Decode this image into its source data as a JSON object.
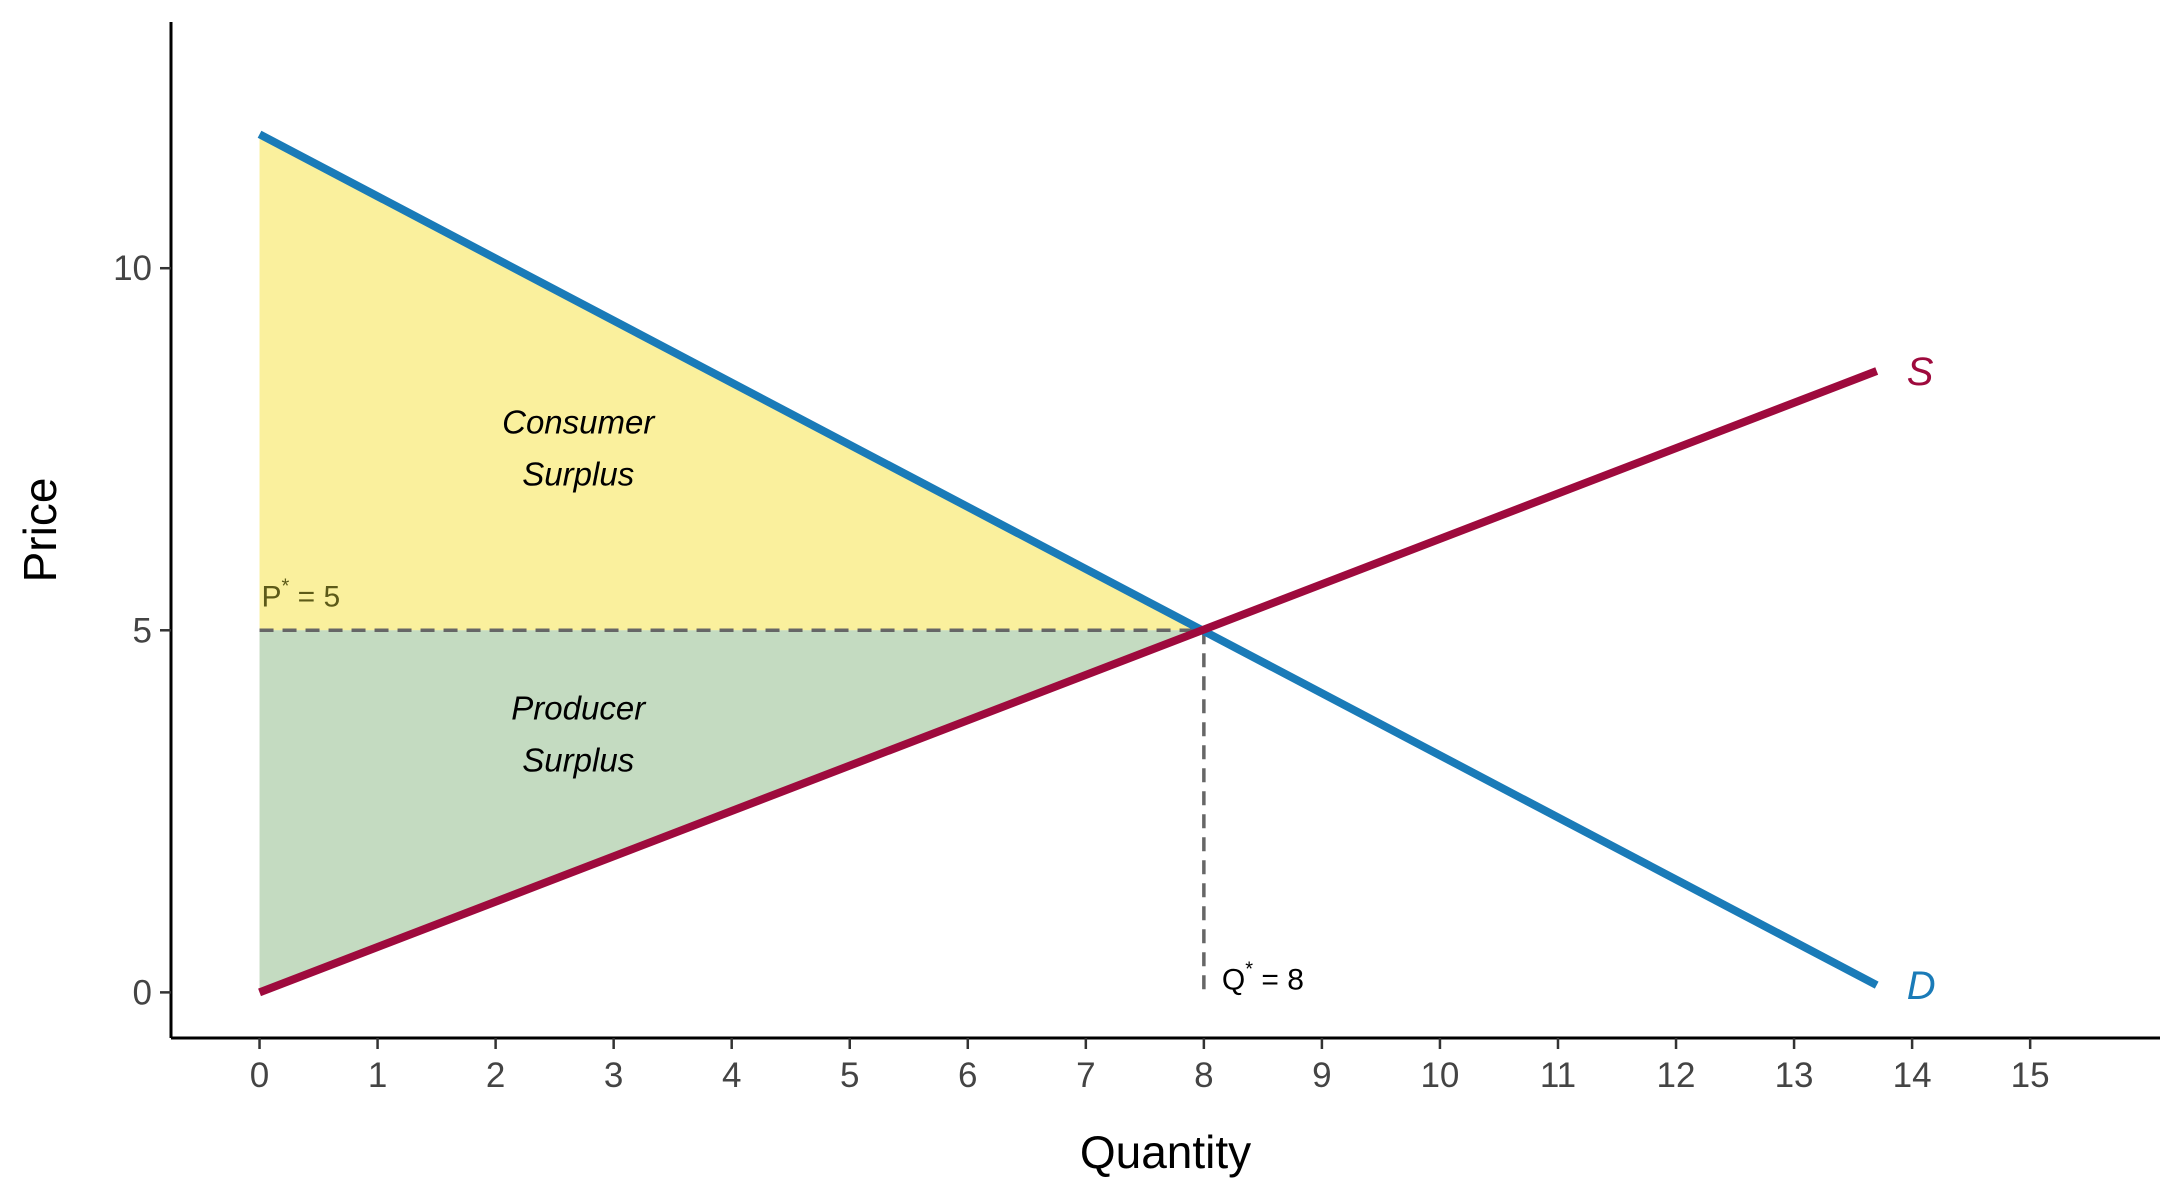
{
  "chart_data": {
    "type": "line",
    "xlabel": "Quantity",
    "ylabel": "Price",
    "xlim": [
      -0.75,
      16.1
    ],
    "ylim": [
      -0.63,
      13.4
    ],
    "x_ticks": [
      0,
      1,
      2,
      3,
      4,
      5,
      6,
      7,
      8,
      9,
      10,
      11,
      12,
      13,
      14,
      15
    ],
    "y_ticks": [
      0,
      5,
      10
    ],
    "grid": false,
    "series": [
      {
        "name": "D",
        "color": "#1a7bb8",
        "x": [
          0,
          13.7
        ],
        "y": [
          11.85,
          0.1
        ]
      },
      {
        "name": "S",
        "color": "#9e0a3d",
        "x": [
          0,
          13.7
        ],
        "y": [
          0,
          8.58
        ]
      }
    ],
    "equilibrium": {
      "q": 8,
      "p": 5
    },
    "regions": [
      {
        "label_line1": "Consumer",
        "label_line2": "Surplus",
        "color": "#f8e869",
        "opacity": 0.65,
        "label_at": [
          2.7,
          7.5
        ]
      },
      {
        "label_line1": "Producer",
        "label_line2": "Surplus",
        "color": "#94bd8e",
        "opacity": 0.55,
        "label_at": [
          2.7,
          3.55
        ]
      }
    ],
    "annotations": [
      {
        "base": "P",
        "sup": "*",
        "rest": " = 5",
        "color": "#5c5a18"
      },
      {
        "base": "Q",
        "sup": "*",
        "rest": " = 8",
        "color": "#000000"
      }
    ]
  }
}
